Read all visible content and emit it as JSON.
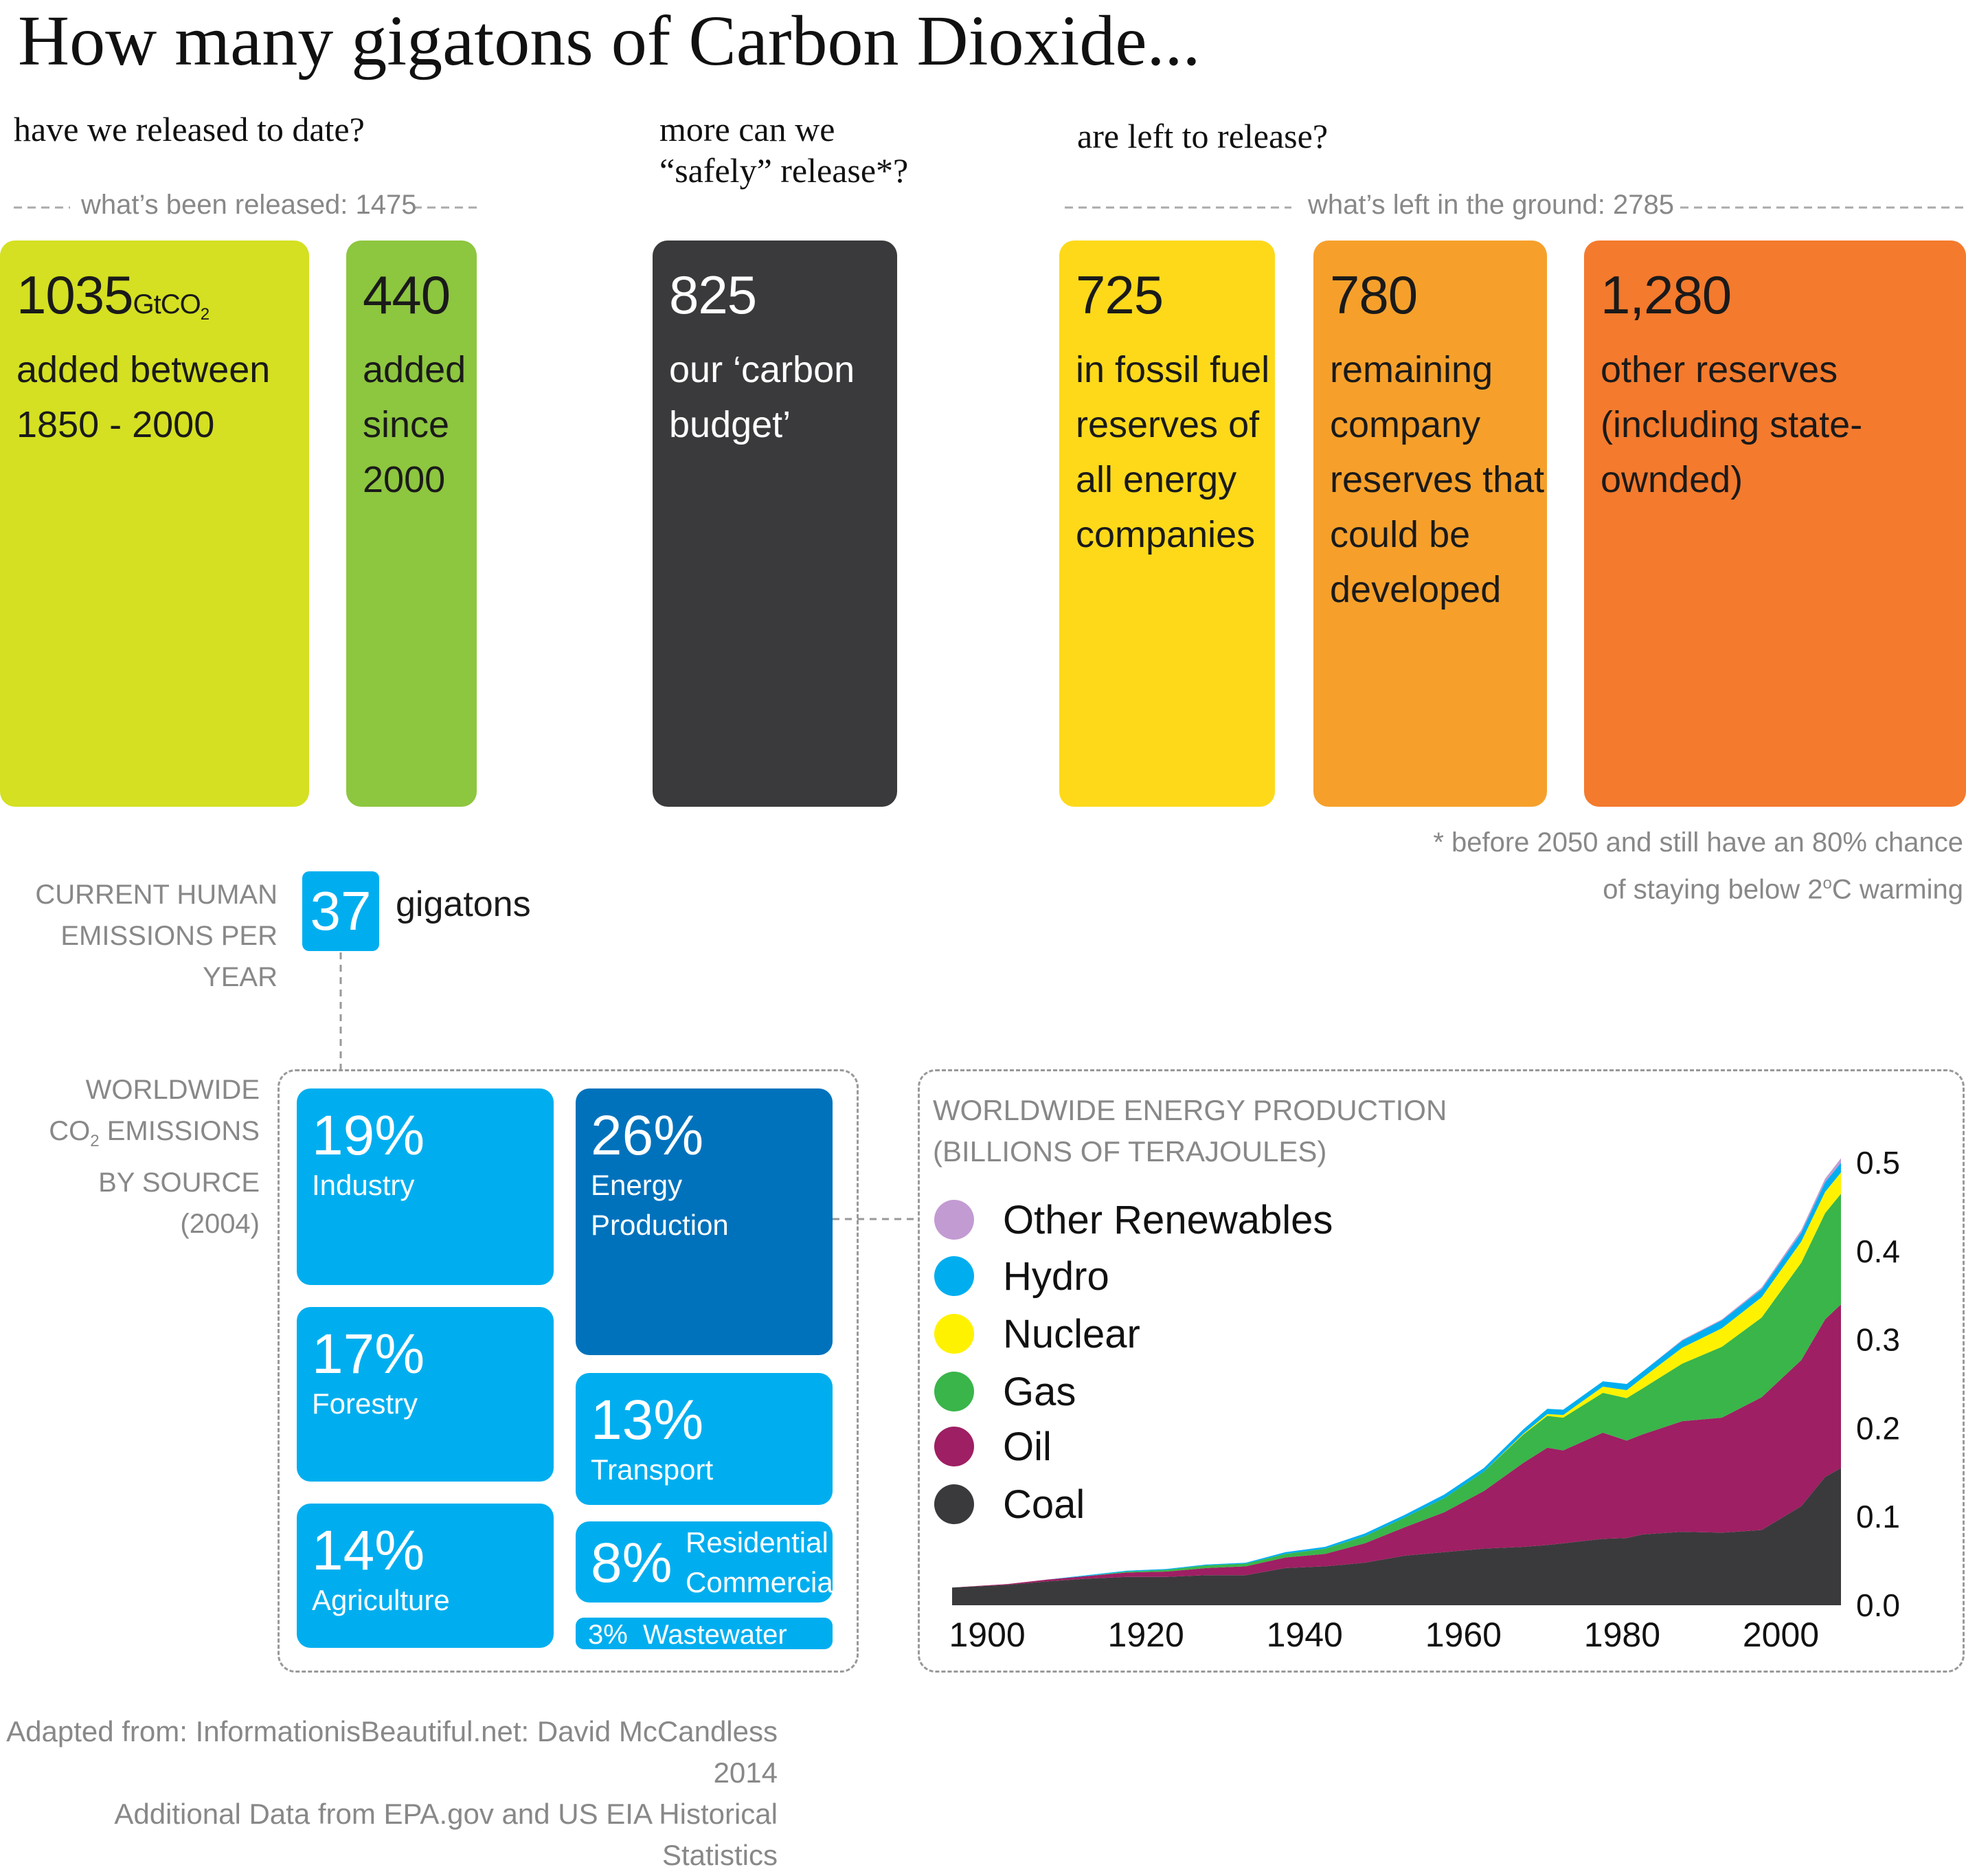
{
  "title": "How many gigatons of Carbon Dioxide...",
  "questions": {
    "released": "have we released to date?",
    "safe_line1": "more can we",
    "safe_line2": "“safely” release*?",
    "left": "are left to release?"
  },
  "dividers": {
    "released": "what’s been released: 1475",
    "left": "what’s left in the ground: 2785"
  },
  "boxes": [
    {
      "value": "1035",
      "unit": "GtCO",
      "unit_sub": "2",
      "lines": [
        "added between",
        "1850 - 2000"
      ],
      "color": "#d4e021"
    },
    {
      "value": "440",
      "lines": [
        "added",
        "since",
        "2000"
      ],
      "color": "#8dc63f"
    },
    {
      "value": "825",
      "lines": [
        "our ‘carbon",
        "budget’"
      ],
      "color": "#3a3a3c"
    },
    {
      "value": "725",
      "lines": [
        "in fossil fuel",
        "reserves of",
        "all energy",
        "companies"
      ],
      "color": "#fdd91a"
    },
    {
      "value": "780",
      "lines": [
        "remaining",
        "company",
        "reserves that",
        "could be",
        "developed"
      ],
      "color": "#f6a02b"
    },
    {
      "value": "1,280",
      "lines": [
        "other reserves",
        "(including state-",
        "ownded)"
      ],
      "color": "#f47a2d"
    }
  ],
  "footnote": {
    "line1": "* before 2050 and still have an 80% chance",
    "line2_a": "of staying below 2",
    "line2_sup": "o",
    "line2_b": "C warming"
  },
  "current": {
    "label_line1": "CURRENT HUMAN",
    "label_line2": "EMISSIONS PER YEAR",
    "value": "37",
    "unit": "gigatons"
  },
  "sources_panel": {
    "label_line1": "WORLDWIDE",
    "label_line2a": "CO",
    "label_line2sub": "2",
    "label_line2b": " EMISSIONS",
    "label_line3": "BY SOURCE",
    "label_line4": "(2004)",
    "tiles": [
      {
        "pct": "19%",
        "lines": [
          "Industry"
        ]
      },
      {
        "pct": "26%",
        "lines": [
          "Energy",
          "Production"
        ]
      },
      {
        "pct": "17%",
        "lines": [
          "Forestry"
        ]
      },
      {
        "pct": "13%",
        "lines": [
          "Transport"
        ]
      },
      {
        "pct": "14%",
        "lines": [
          "Agriculture"
        ]
      },
      {
        "pct": "8%",
        "lines": [
          "Residential",
          "Commercial"
        ]
      },
      {
        "pct": "3%",
        "lines": [
          "Wastewater"
        ]
      }
    ],
    "colors": {
      "light": "#00aeef",
      "dark": "#0072bc"
    }
  },
  "chart_data": {
    "type": "area",
    "title": "WORLDWIDE ENERGY PRODUCTION",
    "subtitle": "(BILLIONS OF TERAJOULES)",
    "x_ticks": [
      "1900",
      "1920",
      "1940",
      "1960",
      "1980",
      "2000"
    ],
    "y_ticks": [
      "0.0",
      "0.1",
      "0.2",
      "0.3",
      "0.4",
      "0.5"
    ],
    "xlim": [
      1898,
      2010
    ],
    "ylim": [
      0,
      0.5
    ],
    "legend_position": "top-left",
    "x": [
      1898,
      1905,
      1910,
      1915,
      1920,
      1925,
      1930,
      1935,
      1940,
      1945,
      1950,
      1955,
      1960,
      1965,
      1970,
      1973,
      1975,
      1980,
      1983,
      1985,
      1990,
      1995,
      2000,
      2005,
      2008,
      2010
    ],
    "series": [
      {
        "name": "Coal",
        "color": "#3a3a3c",
        "values": [
          0.02,
          0.023,
          0.027,
          0.03,
          0.032,
          0.032,
          0.034,
          0.034,
          0.042,
          0.044,
          0.048,
          0.056,
          0.06,
          0.064,
          0.066,
          0.068,
          0.07,
          0.075,
          0.076,
          0.08,
          0.083,
          0.082,
          0.085,
          0.112,
          0.145,
          0.155
        ]
      },
      {
        "name": "Oil",
        "color": "#9e1f63",
        "values": [
          0.0,
          0.001,
          0.002,
          0.003,
          0.005,
          0.006,
          0.008,
          0.01,
          0.012,
          0.014,
          0.022,
          0.032,
          0.045,
          0.065,
          0.095,
          0.11,
          0.105,
          0.12,
          0.11,
          0.113,
          0.125,
          0.13,
          0.15,
          0.165,
          0.178,
          0.185
        ]
      },
      {
        "name": "Gas",
        "color": "#39b54a",
        "values": [
          0.0,
          0.0,
          0.0,
          0.0,
          0.001,
          0.002,
          0.003,
          0.003,
          0.004,
          0.006,
          0.008,
          0.011,
          0.016,
          0.022,
          0.032,
          0.036,
          0.037,
          0.045,
          0.048,
          0.052,
          0.065,
          0.08,
          0.09,
          0.11,
          0.12,
          0.125
        ]
      },
      {
        "name": "Nuclear",
        "color": "#fff200",
        "values": [
          0.0,
          0.0,
          0.0,
          0.0,
          0.0,
          0.0,
          0.0,
          0.0,
          0.0,
          0.0,
          0.0,
          0.0,
          0.0,
          0.0,
          0.001,
          0.002,
          0.003,
          0.007,
          0.009,
          0.012,
          0.018,
          0.021,
          0.023,
          0.024,
          0.024,
          0.024
        ]
      },
      {
        "name": "Hydro",
        "color": "#00aeef",
        "values": [
          0.0,
          0.0,
          0.0,
          0.001,
          0.001,
          0.001,
          0.001,
          0.001,
          0.002,
          0.002,
          0.003,
          0.003,
          0.004,
          0.004,
          0.005,
          0.006,
          0.006,
          0.006,
          0.007,
          0.007,
          0.008,
          0.009,
          0.009,
          0.01,
          0.011,
          0.011
        ]
      },
      {
        "name": "Other Renewables",
        "color": "#c39bd3",
        "values": [
          0.0,
          0.0,
          0.0,
          0.0,
          0.0,
          0.0,
          0.0,
          0.0,
          0.0,
          0.0,
          0.0,
          0.0,
          0.0,
          0.0,
          0.0,
          0.0,
          0.0,
          0.0,
          0.0,
          0.0,
          0.001,
          0.001,
          0.002,
          0.003,
          0.004,
          0.005
        ]
      }
    ]
  },
  "source": {
    "line1": "Adapted from: InformationisBeautiful.net: David McCandless 2014",
    "line2": "Additional Data from EPA.gov and US EIA Historical Statistics"
  }
}
